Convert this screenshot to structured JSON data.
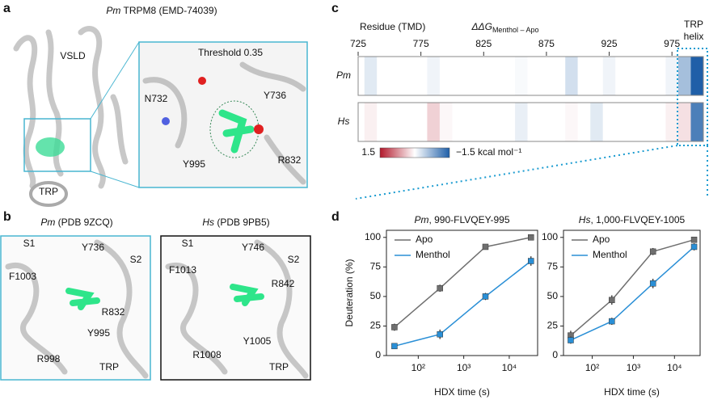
{
  "panel_a": {
    "letter": "a",
    "species": "Pm",
    "title": " TRPM8 (EMD-74039)",
    "inset_title": "Threshold 0.35",
    "labels": [
      "VSLD",
      "TRP",
      "N732",
      "Y736",
      "Y995",
      "R832"
    ]
  },
  "panel_b": {
    "letter": "b",
    "left": {
      "species": "Pm",
      "title": " (PDB 9ZCQ)",
      "labels": [
        "S1",
        "Y736",
        "S2",
        "F1003",
        "R832",
        "Y995",
        "R998",
        "TRP"
      ]
    },
    "right": {
      "species": "Hs",
      "title": " (PDB 9PB5)",
      "labels": [
        "S1",
        "Y746",
        "S2",
        "F1013",
        "R842",
        "Y1005",
        "R1008",
        "TRP"
      ]
    }
  },
  "panel_c": {
    "letter": "c"
  },
  "panel_d": {
    "letter": "d"
  },
  "chart_data": [
    {
      "type": "heatmap",
      "title": "ΔΔG",
      "title_subscript": "Menthol – Apo",
      "xlabel": "Residue (TMD)",
      "xlim": [
        725,
        1000
      ],
      "xticks": [
        725,
        775,
        825,
        875,
        925,
        975
      ],
      "x": [
        725,
        735,
        745,
        755,
        765,
        775,
        785,
        795,
        805,
        815,
        825,
        835,
        845,
        855,
        865,
        875,
        885,
        895,
        905,
        915,
        925,
        935,
        945,
        955,
        965,
        975,
        985,
        995
      ],
      "series": [
        {
          "name": "Pm",
          "values": [
            0,
            -0.2,
            0,
            0,
            0,
            0,
            -0.1,
            0,
            0,
            0,
            0,
            0,
            0,
            -0.05,
            0,
            0,
            0,
            -0.3,
            0,
            0,
            -0.1,
            0,
            0,
            0,
            0,
            -0.1,
            -0.6,
            -1.5
          ]
        },
        {
          "name": "Hs",
          "values": [
            0,
            0.1,
            0,
            0,
            0,
            0,
            0.3,
            0.05,
            0,
            0,
            0,
            0,
            0,
            -0.15,
            0,
            0,
            0,
            0.05,
            0,
            -0.2,
            0,
            0,
            0,
            0,
            0,
            0.1,
            0.2,
            -1.2
          ]
        }
      ],
      "clim": [
        1.5,
        -1.5
      ],
      "colorbar_ticks": [
        1.5,
        {
          "value": -1.5,
          "label": "−1.5 kcal mol⁻¹"
        }
      ],
      "colors": [
        "#b2182b",
        "#ffffff",
        "#1f5fa8"
      ],
      "annotation": [
        "TRP",
        "helix"
      ]
    },
    {
      "type": "line",
      "species": "Pm",
      "title": ", 990-FLVQEY-995",
      "xlabel": "HDX time (s)",
      "ylabel": "Deuteration (%)",
      "xscale": "log",
      "xlim": [
        20,
        42000
      ],
      "ylim": [
        0,
        106
      ],
      "xticks": [
        {
          "value": 100,
          "label": "10²"
        },
        {
          "value": 1000,
          "label": "10³"
        },
        {
          "value": 10000,
          "label": "10⁴"
        }
      ],
      "yticks": [
        0,
        25,
        50,
        75,
        100
      ],
      "legend": "upper left",
      "x": [
        30,
        300,
        3000,
        30000
      ],
      "series": [
        {
          "name": "Apo",
          "color": "#6f6f6f",
          "values": [
            24,
            57,
            92,
            100
          ],
          "errors": [
            3,
            3,
            2,
            2
          ]
        },
        {
          "name": "Menthol",
          "color": "#2a8fd6",
          "values": [
            8,
            18,
            50,
            80
          ],
          "errors": [
            1,
            4,
            3,
            4
          ]
        }
      ]
    },
    {
      "type": "line",
      "species": "Hs",
      "title": ", 1,000-FLVQEY-1005",
      "xlabel": "HDX time (s)",
      "xscale": "log",
      "xlim": [
        20,
        42000
      ],
      "ylim": [
        0,
        106
      ],
      "xticks": [
        {
          "value": 100,
          "label": "10²"
        },
        {
          "value": 1000,
          "label": "10³"
        },
        {
          "value": 10000,
          "label": "10⁴"
        }
      ],
      "yticks": [
        0,
        25,
        50,
        75,
        100
      ],
      "legend": "upper left",
      "x": [
        30,
        300,
        3000,
        30000
      ],
      "series": [
        {
          "name": "Apo",
          "color": "#6f6f6f",
          "values": [
            17,
            47,
            88,
            98
          ],
          "errors": [
            4,
            4,
            3,
            2
          ]
        },
        {
          "name": "Menthol",
          "color": "#2a8fd6",
          "values": [
            13,
            29,
            61,
            92
          ],
          "errors": [
            3,
            3,
            4,
            3
          ]
        }
      ]
    }
  ]
}
